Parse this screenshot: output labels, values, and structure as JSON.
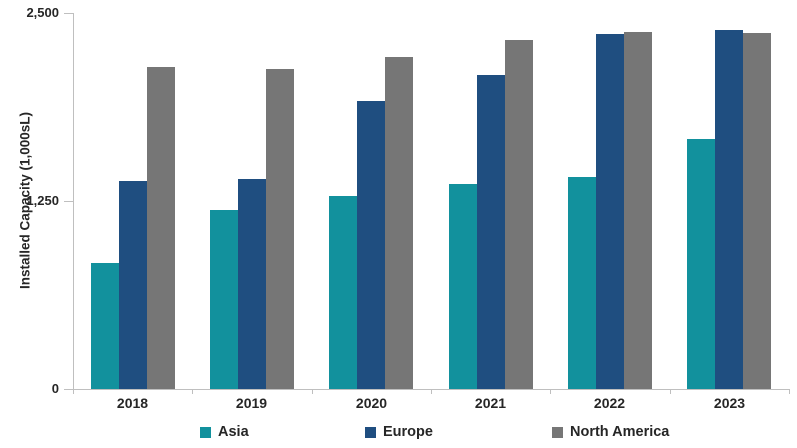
{
  "chart_data": {
    "type": "bar",
    "title": "",
    "xlabel": "",
    "ylabel": "Installed Capacity (1,000sL)",
    "categories": [
      "2018",
      "2019",
      "2020",
      "2021",
      "2022",
      "2023"
    ],
    "series": [
      {
        "name": "Asia",
        "color": "#12919D",
        "values": [
          840,
          1190,
          1285,
          1365,
          1410,
          1665
        ]
      },
      {
        "name": "Europe",
        "color": "#1F4E80",
        "values": [
          1385,
          1395,
          1915,
          2090,
          2360,
          2390
        ]
      },
      {
        "name": "North America",
        "color": "#767676",
        "values": [
          2140,
          2130,
          2210,
          2320,
          2375,
          2365
        ]
      }
    ],
    "ylim": [
      0,
      2500
    ],
    "yticks": [
      {
        "value": 0,
        "label": "0"
      },
      {
        "value": 1250,
        "label": "1,250"
      },
      {
        "value": 2500,
        "label": "2,500"
      }
    ],
    "grid": false,
    "legend_position": "bottom",
    "axis_color": "#BFBFBF",
    "text_color": "#262626"
  }
}
